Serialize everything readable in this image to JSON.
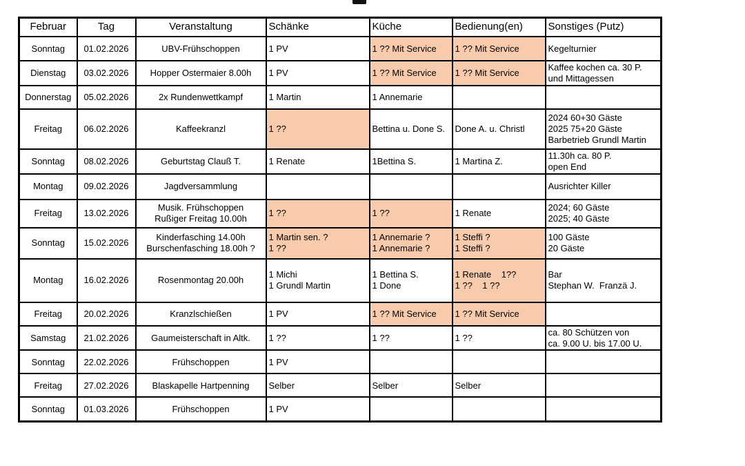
{
  "page": {
    "title_fragment": "cropped-title-bottom-edge"
  },
  "table": {
    "highlight_color": "#F8CBAD",
    "headers": [
      {
        "label": "Februar"
      },
      {
        "label": "Tag"
      },
      {
        "label": "Veranstaltung"
      },
      {
        "label": "Schänke"
      },
      {
        "label": "Küche"
      },
      {
        "label": "Bedienung(en)"
      },
      {
        "label": "Sonstiges (Putz)"
      }
    ],
    "rows": [
      {
        "day": "Sonntag",
        "date": "01.02.2026",
        "event": "UBV-Frühschoppen",
        "schaenke": {
          "text": "1 PV",
          "highlight": false
        },
        "kueche": {
          "text": "1 ?? Mit Service",
          "highlight": true
        },
        "bedienung": {
          "text": "1 ?? Mit Service",
          "highlight": true
        },
        "sonstiges": {
          "text": "Kegelturnier",
          "highlight": false
        }
      },
      {
        "day": "Dienstag",
        "date": "03.02.2026",
        "event": "Hopper Ostermaier 8.00h",
        "schaenke": {
          "text": "1 PV",
          "highlight": false
        },
        "kueche": {
          "text": "1 ?? Mit Service",
          "highlight": true
        },
        "bedienung": {
          "text": "1 ?? Mit Service",
          "highlight": true
        },
        "sonstiges": {
          "text": "Kaffee kochen ca. 30 P.\nund Mittagessen",
          "highlight": false
        }
      },
      {
        "day": "Donnerstag",
        "date": "05.02.2026",
        "event": "2x Rundenwettkampf",
        "schaenke": {
          "text": "1 Martin",
          "highlight": false
        },
        "kueche": {
          "text": "1 Annemarie",
          "highlight": false
        },
        "bedienung": {
          "text": "",
          "highlight": false
        },
        "sonstiges": {
          "text": "",
          "highlight": false
        }
      },
      {
        "day": "Freitag",
        "date": "06.02.2026",
        "event": "Kaffeekranzl",
        "schaenke": {
          "text": "1 ??",
          "highlight": true
        },
        "kueche": {
          "text": "Bettina u. Done S.",
          "highlight": false
        },
        "bedienung": {
          "text": "Done A. u. Christl",
          "highlight": false
        },
        "sonstiges": {
          "text": "2024 60+30 Gäste\n2025 75+20 Gäste\nBarbetrieb Grundl Martin",
          "highlight": false
        }
      },
      {
        "day": "Sonntag",
        "date": "08.02.2026",
        "event": "Geburtstag Clauß T.",
        "schaenke": {
          "text": "1 Renate",
          "highlight": false
        },
        "kueche": {
          "text": "1Bettina S.",
          "highlight": false
        },
        "bedienung": {
          "text": "1 Martina Z.",
          "highlight": false
        },
        "sonstiges": {
          "text": "11.30h ca. 80 P.\nopen End",
          "highlight": false
        }
      },
      {
        "day": "Montag",
        "date": "09.02.2026",
        "event": "Jagdversammlung",
        "schaenke": {
          "text": "",
          "highlight": false
        },
        "kueche": {
          "text": "",
          "highlight": false
        },
        "bedienung": {
          "text": "",
          "highlight": false
        },
        "sonstiges": {
          "text": "Ausrichter Killer",
          "highlight": false
        }
      },
      {
        "day": "Freitag",
        "date": "13.02.2026",
        "event": "Musik. Frühschoppen\nRußiger Freitag 10.00h",
        "schaenke": {
          "text": "1 ??",
          "highlight": true
        },
        "kueche": {
          "text": "1 ??",
          "highlight": true
        },
        "bedienung": {
          "text": "1 Renate",
          "highlight": false
        },
        "sonstiges": {
          "text": "2024; 60 Gäste\n2025; 40 Gäste",
          "highlight": false
        }
      },
      {
        "day": "Sonntag",
        "date": "15.02.2026",
        "event": "Kinderfasching 14.00h\nBurschenfasching 18.00h ?",
        "schaenke": {
          "text": "1 Martin sen. ?\n1 ??",
          "highlight": true
        },
        "kueche": {
          "text": "1 Annemarie ?\n1 Annemarie ?",
          "highlight": true
        },
        "bedienung": {
          "text": "1 Steffi ?\n1 Steffi ?",
          "highlight": true
        },
        "sonstiges": {
          "text": "100 Gäste\n20 Gäste",
          "highlight": false
        }
      },
      {
        "day": "Montag",
        "date": "16.02.2026",
        "event": "Rosenmontag 20.00h",
        "schaenke": {
          "text": "1 Michi\n1 Grundl Martin",
          "highlight": false
        },
        "kueche": {
          "text": "1 Bettina S.\n1 Done",
          "highlight": false
        },
        "bedienung": {
          "text": "1 Renate    1??\n1 ??    1 ??",
          "highlight": true
        },
        "sonstiges": {
          "text": "Bar\nStephan W.  Franzä J.",
          "highlight": false
        }
      },
      {
        "day": "Freitag",
        "date": "20.02.2026",
        "event": "Kranzlschießen",
        "schaenke": {
          "text": "1 PV",
          "highlight": false
        },
        "kueche": {
          "text": "1 ?? Mit Service",
          "highlight": true
        },
        "bedienung": {
          "text": "1 ?? Mit Service",
          "highlight": true
        },
        "sonstiges": {
          "text": "",
          "highlight": false
        }
      },
      {
        "day": "Samstag",
        "date": "21.02.2026",
        "event": "Gaumeisterschaft in Altk.",
        "schaenke": {
          "text": "1 ??",
          "highlight": false
        },
        "kueche": {
          "text": "1 ??",
          "highlight": false
        },
        "bedienung": {
          "text": "1 ??",
          "highlight": false
        },
        "sonstiges": {
          "text": "ca. 80 Schützen von\nca. 9.00 U. bis 17.00 U.",
          "highlight": false
        }
      },
      {
        "day": "Sonntag",
        "date": "22.02.2026",
        "event": "Frühschoppen",
        "schaenke": {
          "text": "1 PV",
          "highlight": false
        },
        "kueche": {
          "text": "",
          "highlight": false
        },
        "bedienung": {
          "text": "",
          "highlight": false
        },
        "sonstiges": {
          "text": "",
          "highlight": false
        }
      },
      {
        "day": "Freitag",
        "date": "27.02.2026",
        "event": "Blaskapelle Hartpenning",
        "schaenke": {
          "text": "Selber",
          "highlight": false
        },
        "kueche": {
          "text": "Selber",
          "highlight": false
        },
        "bedienung": {
          "text": "Selber",
          "highlight": false
        },
        "sonstiges": {
          "text": "",
          "highlight": false
        }
      },
      {
        "day": "Sonntag",
        "date": "01.03.2026",
        "event": "Frühschoppen",
        "schaenke": {
          "text": "1 PV",
          "highlight": false
        },
        "kueche": {
          "text": "",
          "highlight": false
        },
        "bedienung": {
          "text": "",
          "highlight": false
        },
        "sonstiges": {
          "text": "",
          "highlight": false
        }
      }
    ]
  }
}
